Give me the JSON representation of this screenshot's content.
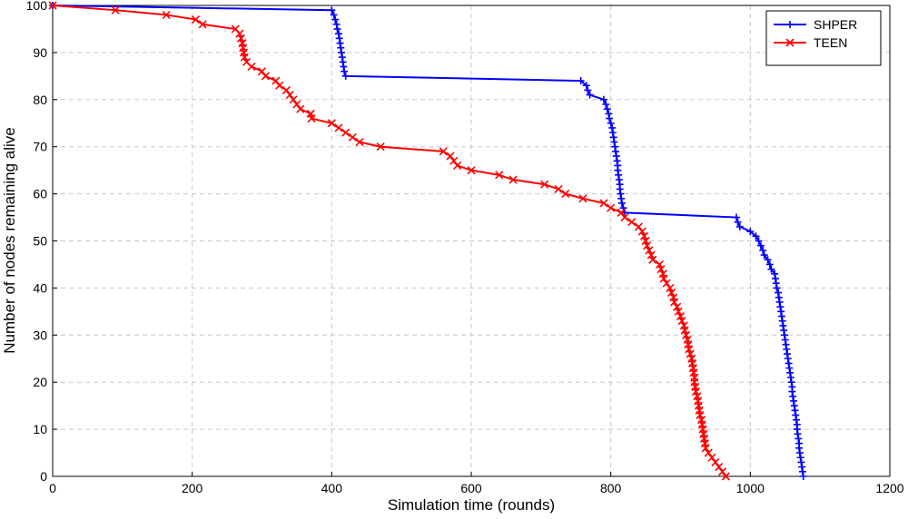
{
  "chart_data": {
    "type": "line",
    "x_label": "Simulation time (rounds)",
    "y_label": "Number of nodes remaining alive",
    "xlim": [
      0,
      1200
    ],
    "xticks": [
      0,
      200,
      400,
      600,
      800,
      1000,
      1200
    ],
    "ylim": [
      0,
      100
    ],
    "yticks": [
      0,
      10,
      20,
      30,
      40,
      50,
      60,
      70,
      80,
      90,
      100
    ],
    "grid": true,
    "legend": "upper right",
    "series": [
      {
        "name": "SHPER",
        "color": "#0000ff",
        "marker": "+",
        "x": [
          0,
          400,
          403,
          405,
          407,
          408,
          410,
          411,
          412,
          413,
          414,
          415,
          416,
          417,
          418,
          420,
          757,
          765,
          767,
          770,
          790,
          793,
          795,
          797,
          798,
          800,
          802,
          803,
          804,
          805,
          806,
          807,
          808,
          809,
          810,
          810,
          811,
          812,
          813,
          813,
          814,
          815,
          816,
          818,
          820,
          980,
          982,
          985,
          1000,
          1008,
          1012,
          1015,
          1018,
          1020,
          1025,
          1028,
          1030,
          1035,
          1036,
          1037,
          1038,
          1040,
          1041,
          1042,
          1043,
          1044,
          1045,
          1046,
          1047,
          1048,
          1049,
          1050,
          1051,
          1052,
          1053,
          1054,
          1055,
          1056,
          1057,
          1058,
          1059,
          1060,
          1060,
          1061,
          1062,
          1063,
          1064,
          1065,
          1066,
          1067,
          1067,
          1068,
          1069,
          1070,
          1070,
          1071,
          1072,
          1073,
          1074,
          1075,
          1076
        ],
        "values": [
          100,
          99,
          98,
          97,
          96,
          95,
          94,
          93,
          92,
          91,
          90,
          89,
          88,
          87,
          86,
          85,
          84,
          83,
          82,
          81,
          80,
          79,
          78,
          77,
          76,
          75,
          74,
          73,
          72,
          71,
          70,
          69,
          68,
          67,
          66,
          65,
          64,
          63,
          62,
          61,
          60,
          59,
          58,
          57,
          56,
          55,
          54,
          53,
          52,
          51,
          50,
          49,
          48,
          47,
          46,
          45,
          44,
          43,
          42,
          41,
          40,
          39,
          38,
          37,
          36,
          35,
          34,
          33,
          32,
          31,
          30,
          29,
          28,
          27,
          26,
          25,
          24,
          23,
          22,
          21,
          20,
          19,
          18,
          17,
          16,
          15,
          14,
          13,
          12,
          11,
          10,
          9,
          8,
          7,
          6,
          5,
          4,
          3,
          2,
          1,
          0
        ]
      },
      {
        "name": "TEEN",
        "color": "#ff0000",
        "marker": "x",
        "x": [
          0,
          90,
          163,
          205,
          215,
          262,
          268,
          270,
          272,
          273,
          274,
          275,
          278,
          285,
          300,
          305,
          320,
          325,
          335,
          340,
          345,
          350,
          355,
          370,
          371,
          400,
          410,
          420,
          430,
          440,
          470,
          560,
          570,
          575,
          580,
          600,
          640,
          660,
          705,
          725,
          735,
          760,
          790,
          800,
          815,
          820,
          830,
          840,
          845,
          848,
          850,
          852,
          855,
          858,
          860,
          870,
          872,
          875,
          876,
          880,
          885,
          887,
          890,
          891,
          895,
          897,
          900,
          902,
          905,
          906,
          908,
          910,
          911,
          912,
          914,
          916,
          917,
          918,
          919,
          920,
          920,
          921,
          922,
          924,
          925,
          926,
          927,
          928,
          930,
          931,
          932,
          933,
          934,
          935,
          936,
          940,
          945,
          950,
          955,
          960,
          965
        ],
        "values": [
          100,
          99,
          98,
          97,
          96,
          95,
          94,
          93,
          92,
          91,
          90,
          89,
          88,
          87,
          86,
          85,
          84,
          83,
          82,
          81,
          80,
          79,
          78,
          77,
          76,
          75,
          74,
          73,
          72,
          71,
          70,
          69,
          68,
          67,
          66,
          65,
          64,
          63,
          62,
          61,
          60,
          59,
          58,
          57,
          56,
          55,
          54,
          53,
          52,
          51,
          50,
          49,
          48,
          47,
          46,
          45,
          44,
          43,
          42,
          41,
          40,
          39,
          38,
          37,
          36,
          35,
          34,
          33,
          32,
          31,
          30,
          29,
          28,
          27,
          26,
          25,
          24,
          23,
          22,
          21,
          20,
          19,
          18,
          17,
          16,
          15,
          14,
          13,
          12,
          11,
          10,
          9,
          8,
          7,
          6,
          5,
          4,
          3,
          2,
          1,
          0
        ]
      }
    ]
  }
}
